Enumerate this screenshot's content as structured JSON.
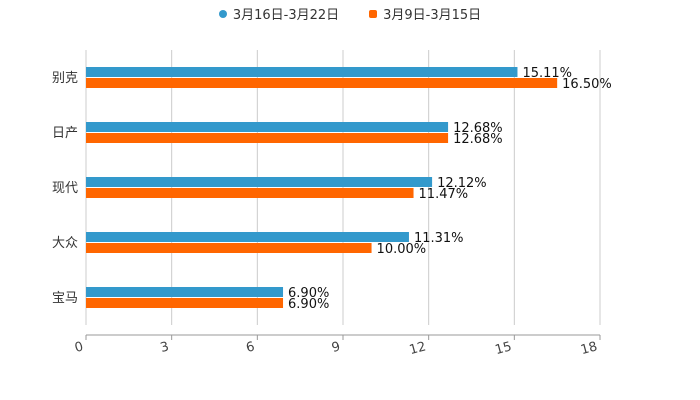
{
  "chart_data": {
    "type": "bar",
    "orientation": "horizontal",
    "title": "",
    "xlabel": "",
    "ylabel": "",
    "categories": [
      "别克",
      "日产",
      "现代",
      "大众",
      "宝马"
    ],
    "series": [
      {
        "name": "3月16日-3月22日",
        "color": "#3399CC",
        "values": [
          15.11,
          12.68,
          12.12,
          11.31,
          6.9
        ],
        "labels": [
          "15.11%",
          "12.68%",
          "12.12%",
          "11.31%",
          "6.90%"
        ]
      },
      {
        "name": "3月9日-3月15日",
        "color": "#FF6600",
        "values": [
          16.5,
          12.68,
          11.47,
          10.0,
          6.9
        ],
        "labels": [
          "16.50%",
          "12.68%",
          "11.47%",
          "10.00%",
          "6.90%"
        ]
      }
    ],
    "xlim": [
      0,
      18
    ],
    "xticks": [
      "0",
      "3",
      "6",
      "9",
      "12",
      "15",
      "18"
    ],
    "grid": true,
    "legend_position": "top-center"
  }
}
